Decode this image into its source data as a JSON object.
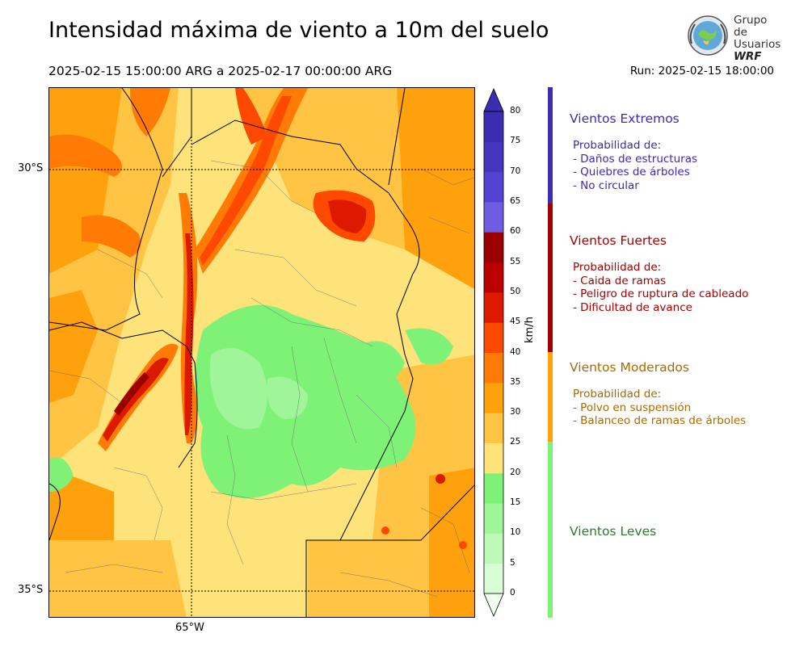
{
  "header": {
    "title": "Intensidad máxima de viento a 10m del suelo",
    "subtitle": "2025-02-15 15:00:00 ARG  a  2025-02-17 00:00:00 ARG",
    "run": "Run: 2025-02-15 18:00:00"
  },
  "logo": {
    "line1": "Grupo de",
    "line2": "Usuarios",
    "line3": "WRF"
  },
  "map": {
    "lat_labels": [
      "30°S",
      "35°S"
    ],
    "lon_labels": [
      "65°W"
    ]
  },
  "colorbar": {
    "unit": "km/h",
    "ticks": [
      "0",
      "5",
      "10",
      "15",
      "20",
      "25",
      "30",
      "35",
      "40",
      "45",
      "50",
      "55",
      "60",
      "65",
      "70",
      "75",
      "80"
    ],
    "colors": [
      "#f2fff0",
      "#d8fdd5",
      "#bdfab7",
      "#9ff597",
      "#7ef277",
      "#fee27a",
      "#ffc443",
      "#ffa10c",
      "#ff7b05",
      "#ff4800",
      "#dd1a00",
      "#bb0000",
      "#9a0000",
      "#6e5de2",
      "#5443d3",
      "#4535bf",
      "#3a2db2"
    ]
  },
  "legend": {
    "categories": [
      {
        "title": "Vientos Extremos",
        "color": "#3d2ab5",
        "desc": [
          "Probabilidad de:",
          "- Daños de estructuras",
          "- Quiebres de árboles",
          "- No circular"
        ]
      },
      {
        "title": "Vientos Fuertes",
        "color": "#a30000",
        "desc": [
          "Probabilidad de:",
          "- Caida de ramas",
          "- Peligro de ruptura de cableado",
          "- Dificultad de avance"
        ]
      },
      {
        "title": "Vientos Moderados",
        "color": "#a86a00",
        "desc": [
          "Probabilidad de:",
          "- Polvo en suspensión",
          "- Balanceo de ramas de árboles"
        ]
      },
      {
        "title": "Vientos Leves",
        "color": "#2f7a2f",
        "desc": []
      }
    ],
    "bar_colors": [
      "#3a2db2",
      "#a00000",
      "#ffa10c",
      "#7ef277"
    ]
  }
}
